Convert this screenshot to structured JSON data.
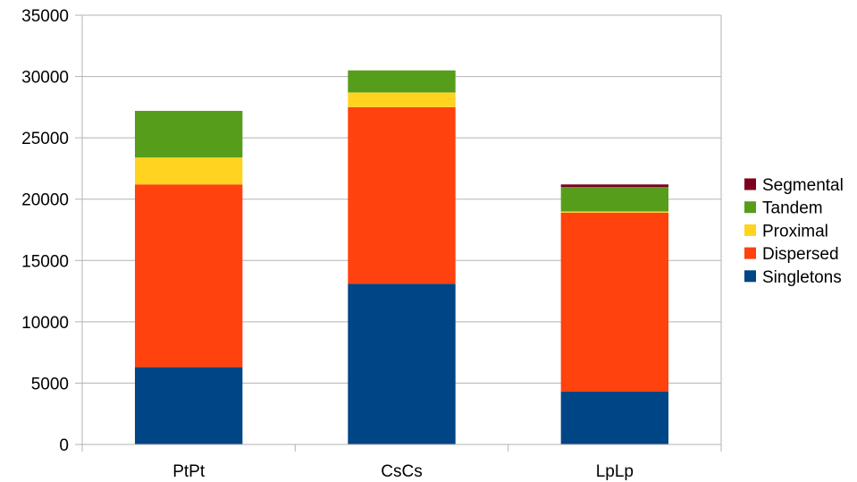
{
  "chart_data": {
    "type": "bar",
    "stacked": true,
    "categories": [
      "PtPt",
      "CsCs",
      "LpLp"
    ],
    "series": [
      {
        "name": "Singletons",
        "color": "#004586",
        "values": [
          6300,
          13100,
          4300
        ]
      },
      {
        "name": "Dispersed",
        "color": "#ff420e",
        "values": [
          14900,
          14400,
          14600
        ]
      },
      {
        "name": "Proximal",
        "color": "#ffd320",
        "values": [
          2200,
          1200,
          100
        ]
      },
      {
        "name": "Tandem",
        "color": "#579d1c",
        "values": [
          3800,
          1800,
          2000
        ]
      },
      {
        "name": "Segmental",
        "color": "#7e0021",
        "values": [
          0,
          0,
          200
        ]
      }
    ],
    "ylim": [
      0,
      35000
    ],
    "yticks": [
      "0",
      "5000",
      "10000",
      "15000",
      "20000",
      "25000",
      "30000",
      "35000"
    ],
    "grid": true,
    "legend_position": "right"
  }
}
